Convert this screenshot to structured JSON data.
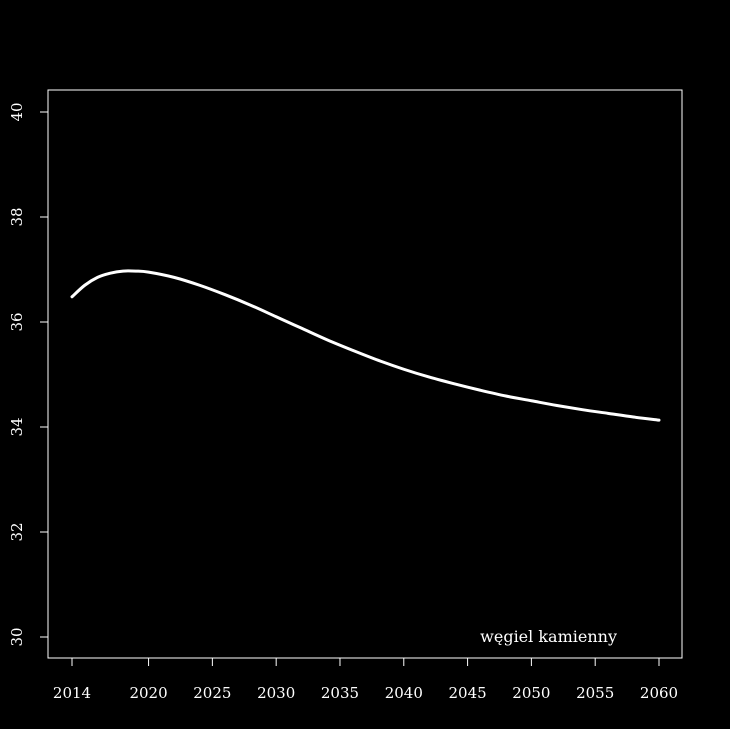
{
  "chart_data": {
    "type": "line",
    "title": "",
    "xlabel": "",
    "ylabel": "",
    "xlim": [
      2014,
      2060
    ],
    "ylim": [
      30,
      40
    ],
    "x_ticks": [
      2014,
      2020,
      2025,
      2030,
      2035,
      2040,
      2045,
      2050,
      2055,
      2060
    ],
    "y_ticks": [
      30,
      32,
      34,
      36,
      38,
      40
    ],
    "grid": false,
    "annotation": "węgiel kamienny",
    "colors": {
      "background": "#000000",
      "foreground": "#ffffff",
      "line": "#ffffff"
    },
    "series": [
      {
        "x": [
          2014,
          2015,
          2016,
          2017,
          2018,
          2019,
          2020,
          2022,
          2024,
          2026,
          2028,
          2030,
          2032,
          2034,
          2036,
          2038,
          2040,
          2042,
          2044,
          2046,
          2048,
          2050,
          2052,
          2054,
          2056,
          2058,
          2060
        ],
        "values": [
          36.48,
          36.7,
          36.85,
          36.93,
          36.97,
          36.97,
          36.95,
          36.85,
          36.7,
          36.52,
          36.32,
          36.1,
          35.88,
          35.66,
          35.46,
          35.27,
          35.1,
          34.95,
          34.82,
          34.7,
          34.59,
          34.5,
          34.41,
          34.33,
          34.26,
          34.19,
          34.13
        ]
      }
    ]
  }
}
